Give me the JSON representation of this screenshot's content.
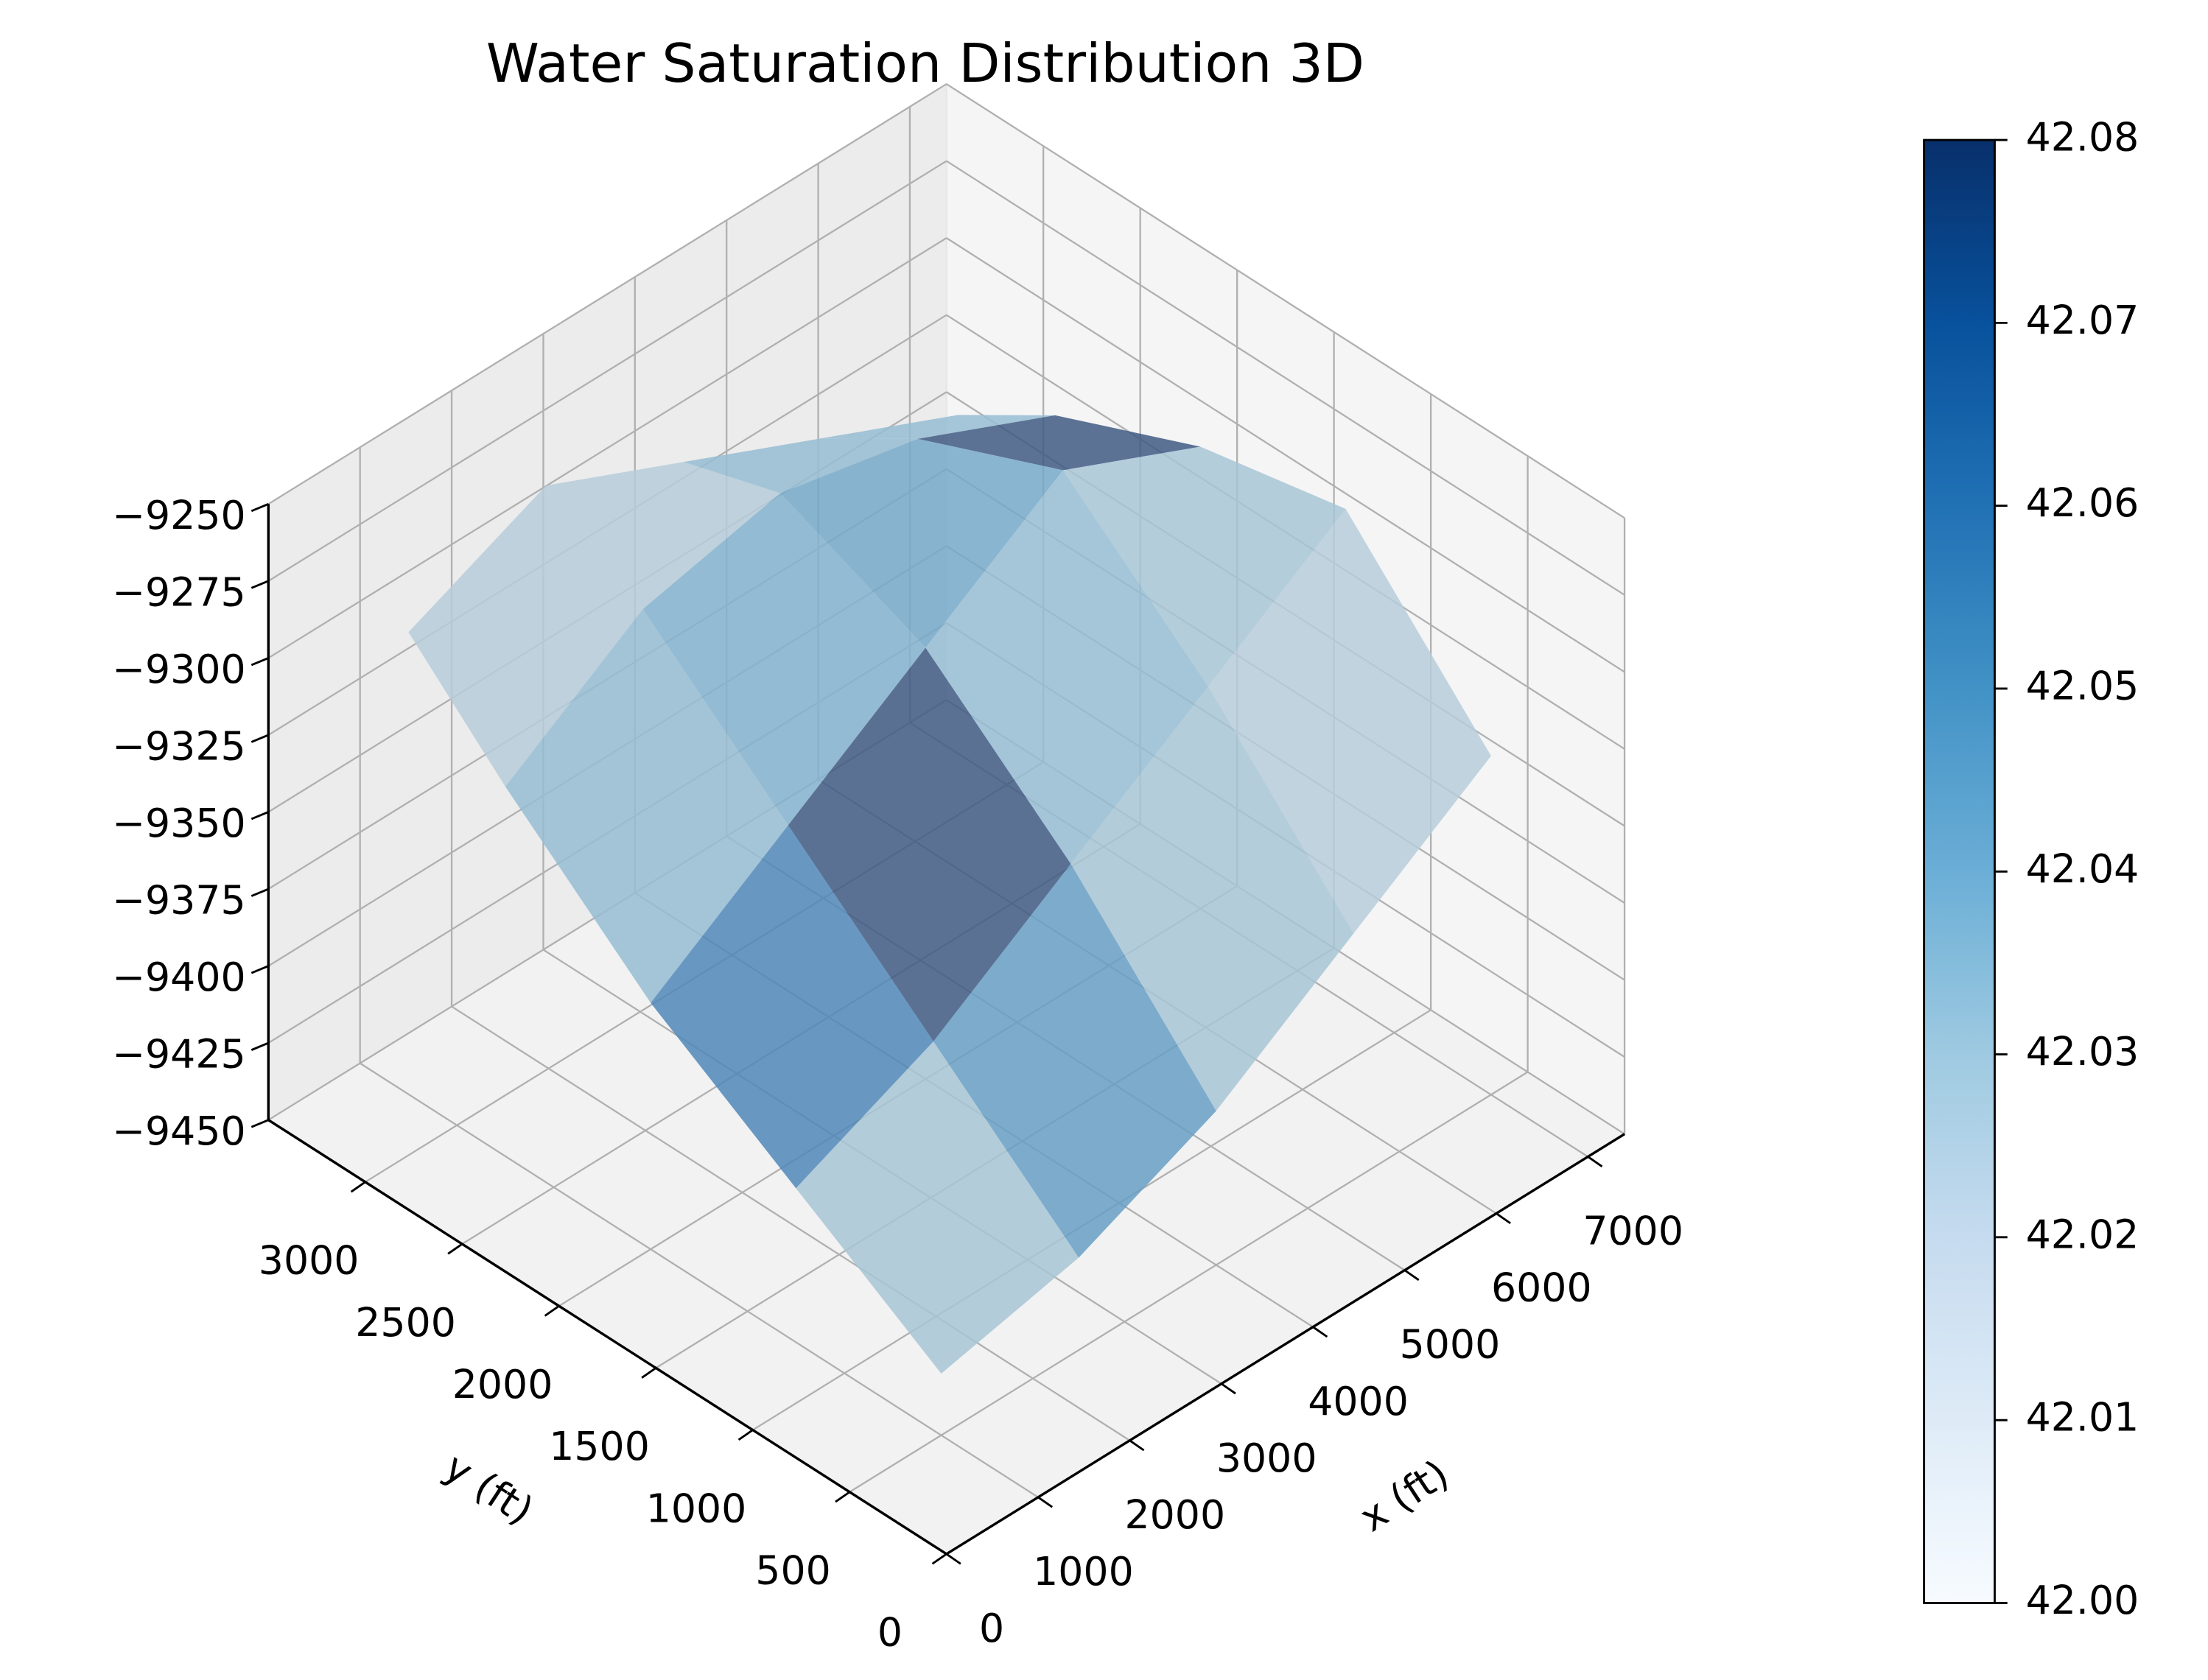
{
  "chart_data": {
    "type": "surface3d",
    "title": "Water Saturation Distribution 3D",
    "xlabel": "x (ft)",
    "ylabel": "y (ft)",
    "xlim": [
      0,
      7400
    ],
    "xticks": [
      0,
      1000,
      2000,
      3000,
      4000,
      5000,
      6000,
      7000
    ],
    "ylim": [
      0,
      3500
    ],
    "yticks": [
      0,
      500,
      1000,
      1500,
      2000,
      2500,
      3000
    ],
    "zlim": [
      -9450,
      -9250
    ],
    "zticks": [
      {
        "value": -9450,
        "label": "−9450"
      },
      {
        "value": -9425,
        "label": "−9425"
      },
      {
        "value": -9400,
        "label": "−9400"
      },
      {
        "value": -9375,
        "label": "−9375"
      },
      {
        "value": -9350,
        "label": "−9350"
      },
      {
        "value": -9325,
        "label": "−9325"
      },
      {
        "value": -9300,
        "label": "−9300"
      },
      {
        "value": -9275,
        "label": "−9275"
      },
      {
        "value": -9250,
        "label": "−9250"
      }
    ],
    "x": [
      1000,
      2500,
      4000,
      5500,
      7000
    ],
    "y": [
      500,
      1250,
      2000,
      2750,
      3250
    ],
    "z": [
      [
        -9430,
        -9420,
        -9400,
        -9370,
        -9340
      ],
      [
        -9400,
        -9380,
        -9350,
        -9320,
        -9290
      ],
      [
        -9370,
        -9340,
        -9310,
        -9280,
        -9300
      ],
      [
        -9330,
        -9300,
        -9290,
        -9300,
        -9320
      ],
      [
        -9300,
        -9280,
        -9300,
        -9320,
        -9340
      ]
    ],
    "saturation": [
      [
        42.03,
        42.05,
        42.03,
        42.025
      ],
      [
        42.06,
        42.08,
        42.035,
        42.03
      ],
      [
        42.035,
        42.04,
        42.045,
        42.08
      ],
      [
        42.025,
        42.025,
        42.035,
        42.035
      ]
    ],
    "clim": [
      42.0,
      42.08
    ],
    "colorbar_ticks": [
      42.0,
      42.01,
      42.02,
      42.03,
      42.04,
      42.05,
      42.06,
      42.07,
      42.08
    ],
    "colorbar_tick_labels": [
      "42.00",
      "42.01",
      "42.02",
      "42.03",
      "42.04",
      "42.05",
      "42.06",
      "42.07",
      "42.08"
    ],
    "colormap": [
      "#f7fbff",
      "#deebf7",
      "#c6dbef",
      "#9ecae1",
      "#6baed6",
      "#4292c6",
      "#2171b5",
      "#08519c",
      "#08306b"
    ],
    "grid": true
  }
}
